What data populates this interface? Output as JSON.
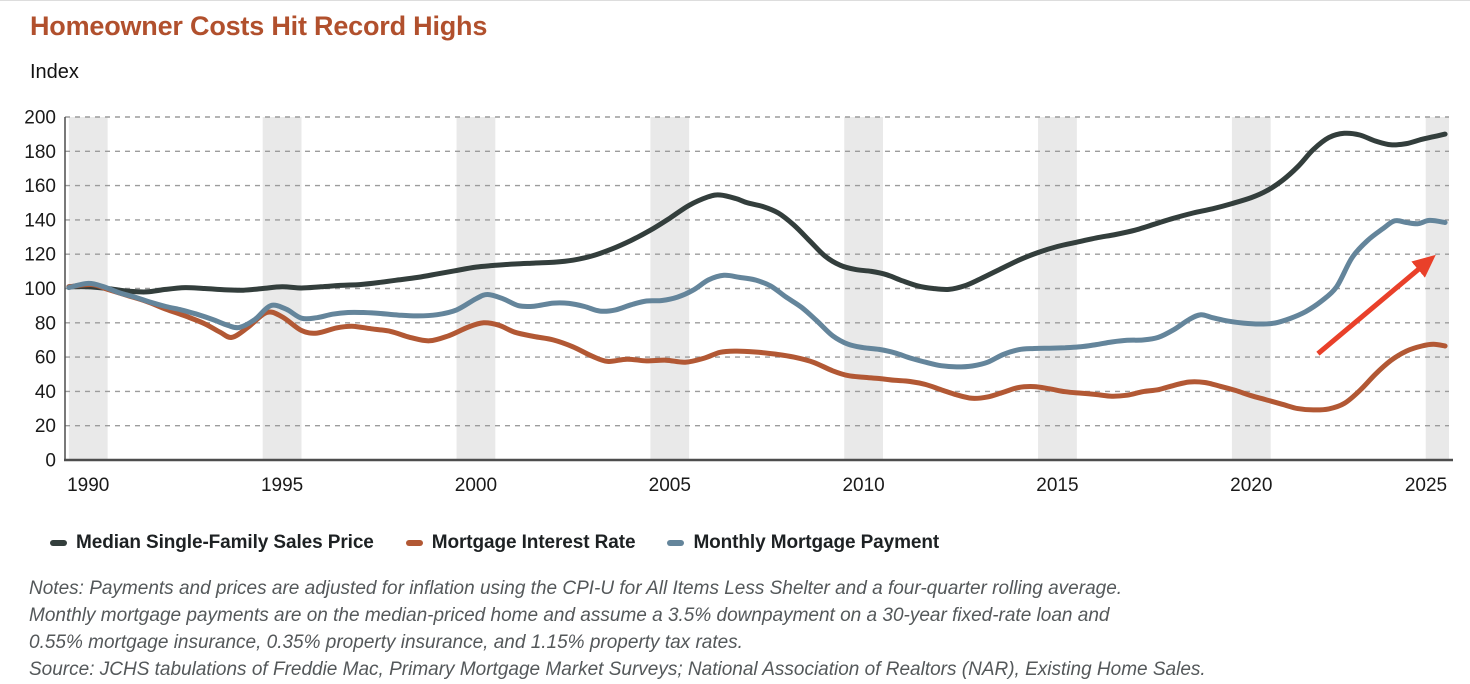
{
  "header": {
    "title": "Homeowner Costs Hit Record Highs",
    "unit_label": "Index"
  },
  "colors": {
    "title": "#b1502d",
    "band": "#e9e9e9",
    "grid": "#9c9c9c",
    "axis": "#4d4d4d",
    "tick_text": "#1a1a1a",
    "legend_text": "#1d2123",
    "notes_text": "#54585a",
    "arrow": "#e9402a"
  },
  "chart_data": {
    "type": "line",
    "title": "Homeowner Costs Hit Record Highs",
    "xlabel": "",
    "ylabel": "Index",
    "ylim": [
      0,
      200
    ],
    "ytick_step": 20,
    "xlim": [
      1989.4,
      2025.1
    ],
    "xticks": [
      1990,
      1995,
      2000,
      2005,
      2010,
      2015,
      2020,
      2025
    ],
    "grid": "dashed horizontal gridlines; 1-year light-gray vertical band centered on each 5-year tick",
    "legend_position": "bottom-left",
    "baseline_note": "All three series indexed to 100 in 1990; values are four-quarter rolling averages",
    "series": [
      {
        "name": "Median Single-Family Sales Price",
        "color": "#333e3c",
        "points": [
          [
            1989.5,
            101
          ],
          [
            1990,
            101
          ],
          [
            1990.5,
            100
          ],
          [
            1991,
            98.5
          ],
          [
            1991.5,
            98
          ],
          [
            1992,
            99.5
          ],
          [
            1992.5,
            100.5
          ],
          [
            1993,
            100
          ],
          [
            1993.5,
            99.3
          ],
          [
            1994,
            99
          ],
          [
            1994.5,
            100
          ],
          [
            1995,
            101
          ],
          [
            1995.5,
            100.3
          ],
          [
            1996,
            101
          ],
          [
            1996.5,
            101.8
          ],
          [
            1997,
            102.3
          ],
          [
            1997.5,
            103.5
          ],
          [
            1998,
            105
          ],
          [
            1998.5,
            106.5
          ],
          [
            1999,
            108.5
          ],
          [
            1999.5,
            110.5
          ],
          [
            2000,
            112.5
          ],
          [
            2000.5,
            113.5
          ],
          [
            2001,
            114.3
          ],
          [
            2001.5,
            114.8
          ],
          [
            2002,
            115.3
          ],
          [
            2002.5,
            116.5
          ],
          [
            2003,
            119
          ],
          [
            2003.5,
            123
          ],
          [
            2004,
            128
          ],
          [
            2004.5,
            134
          ],
          [
            2005,
            141
          ],
          [
            2005.5,
            148.5
          ],
          [
            2006,
            153.5
          ],
          [
            2006.3,
            154.5
          ],
          [
            2006.7,
            152.5
          ],
          [
            2007,
            150
          ],
          [
            2007.4,
            147.8
          ],
          [
            2007.8,
            144
          ],
          [
            2008.2,
            137
          ],
          [
            2008.6,
            128
          ],
          [
            2009,
            119
          ],
          [
            2009.4,
            113.5
          ],
          [
            2009.8,
            111
          ],
          [
            2010.2,
            110
          ],
          [
            2010.6,
            108
          ],
          [
            2011,
            104.5
          ],
          [
            2011.4,
            101.5
          ],
          [
            2011.8,
            100
          ],
          [
            2012.2,
            99.5
          ],
          [
            2012.6,
            101.5
          ],
          [
            2013,
            105.5
          ],
          [
            2013.5,
            111
          ],
          [
            2014,
            116.5
          ],
          [
            2014.5,
            121
          ],
          [
            2015,
            124.5
          ],
          [
            2015.5,
            127
          ],
          [
            2016,
            129.5
          ],
          [
            2016.5,
            131.5
          ],
          [
            2017,
            134
          ],
          [
            2017.5,
            137.5
          ],
          [
            2018,
            141
          ],
          [
            2018.5,
            144
          ],
          [
            2019,
            146.5
          ],
          [
            2019.5,
            149.5
          ],
          [
            2020,
            153
          ],
          [
            2020.4,
            157
          ],
          [
            2020.8,
            163
          ],
          [
            2021.2,
            171
          ],
          [
            2021.6,
            181
          ],
          [
            2022,
            188
          ],
          [
            2022.4,
            190.5
          ],
          [
            2022.8,
            189.5
          ],
          [
            2023.2,
            186
          ],
          [
            2023.6,
            183.8
          ],
          [
            2024,
            184.5
          ],
          [
            2024.4,
            187
          ],
          [
            2024.7,
            188.5
          ],
          [
            2025,
            190
          ]
        ]
      },
      {
        "name": "Mortgage Interest Rate",
        "color": "#b25834",
        "points": [
          [
            1989.5,
            101
          ],
          [
            1990.1,
            102.3
          ],
          [
            1990.5,
            99.5
          ],
          [
            1991,
            96
          ],
          [
            1991.5,
            92.5
          ],
          [
            1992,
            88
          ],
          [
            1992.5,
            84
          ],
          [
            1993,
            79.5
          ],
          [
            1993.4,
            74.5
          ],
          [
            1993.7,
            71.5
          ],
          [
            1994.1,
            77
          ],
          [
            1994.6,
            86
          ],
          [
            1995,
            83.5
          ],
          [
            1995.5,
            75.5
          ],
          [
            1995.9,
            74
          ],
          [
            1996.4,
            77
          ],
          [
            1996.8,
            78
          ],
          [
            1997.3,
            76.5
          ],
          [
            1997.8,
            75
          ],
          [
            1998.3,
            71.5
          ],
          [
            1998.8,
            69.5
          ],
          [
            1999.3,
            72.5
          ],
          [
            1999.8,
            77.5
          ],
          [
            2000.2,
            80
          ],
          [
            2000.6,
            78.5
          ],
          [
            2001,
            74.5
          ],
          [
            2001.5,
            72
          ],
          [
            2002,
            70
          ],
          [
            2002.5,
            66
          ],
          [
            2003,
            60.5
          ],
          [
            2003.4,
            57.5
          ],
          [
            2003.9,
            58.8
          ],
          [
            2004.4,
            57.8
          ],
          [
            2004.9,
            58.2
          ],
          [
            2005.4,
            57
          ],
          [
            2005.9,
            59.5
          ],
          [
            2006.3,
            62.8
          ],
          [
            2006.7,
            63.5
          ],
          [
            2007.2,
            63
          ],
          [
            2007.7,
            61.8
          ],
          [
            2008.2,
            60
          ],
          [
            2008.7,
            57
          ],
          [
            2009.2,
            52
          ],
          [
            2009.6,
            49.2
          ],
          [
            2010,
            48.3
          ],
          [
            2010.4,
            47.5
          ],
          [
            2010.8,
            46.5
          ],
          [
            2011.2,
            45.8
          ],
          [
            2011.6,
            44
          ],
          [
            2012,
            41
          ],
          [
            2012.4,
            38
          ],
          [
            2012.8,
            36
          ],
          [
            2013.2,
            36.8
          ],
          [
            2013.6,
            39.5
          ],
          [
            2014,
            42.3
          ],
          [
            2014.4,
            42.8
          ],
          [
            2014.8,
            41.5
          ],
          [
            2015.2,
            39.8
          ],
          [
            2015.6,
            39
          ],
          [
            2016,
            38.2
          ],
          [
            2016.4,
            37.2
          ],
          [
            2016.8,
            37.8
          ],
          [
            2017.2,
            39.8
          ],
          [
            2017.6,
            41
          ],
          [
            2018,
            43.5
          ],
          [
            2018.4,
            45.5
          ],
          [
            2018.8,
            45.2
          ],
          [
            2019.2,
            43
          ],
          [
            2019.6,
            40.5
          ],
          [
            2020,
            37.5
          ],
          [
            2020.4,
            35
          ],
          [
            2020.8,
            32.5
          ],
          [
            2021.2,
            30
          ],
          [
            2021.6,
            29.2
          ],
          [
            2022,
            29.8
          ],
          [
            2022.4,
            33
          ],
          [
            2022.8,
            40.5
          ],
          [
            2023.2,
            50
          ],
          [
            2023.6,
            58
          ],
          [
            2024,
            63.5
          ],
          [
            2024.4,
            66.5
          ],
          [
            2024.7,
            67.5
          ],
          [
            2025,
            66.5
          ]
        ]
      },
      {
        "name": "Monthly Mortgage Payment",
        "color": "#64859b",
        "points": [
          [
            1989.5,
            100.5
          ],
          [
            1990,
            103
          ],
          [
            1990.4,
            101
          ],
          [
            1990.8,
            97.5
          ],
          [
            1991.2,
            95
          ],
          [
            1991.6,
            92
          ],
          [
            1992,
            89.5
          ],
          [
            1992.4,
            87.5
          ],
          [
            1992.8,
            85
          ],
          [
            1993.2,
            82
          ],
          [
            1993.6,
            78.5
          ],
          [
            1993.9,
            77.3
          ],
          [
            1994.3,
            82
          ],
          [
            1994.7,
            90
          ],
          [
            1995.1,
            88
          ],
          [
            1995.5,
            82.7
          ],
          [
            1995.9,
            83
          ],
          [
            1996.3,
            85
          ],
          [
            1996.7,
            86
          ],
          [
            1997.1,
            86
          ],
          [
            1997.5,
            85.5
          ],
          [
            1998,
            84.5
          ],
          [
            1998.5,
            84
          ],
          [
            1999,
            84.7
          ],
          [
            1999.5,
            87.5
          ],
          [
            2000,
            94
          ],
          [
            2000.3,
            96.5
          ],
          [
            2000.7,
            94
          ],
          [
            2001.1,
            90
          ],
          [
            2001.5,
            89.7
          ],
          [
            2002,
            91.5
          ],
          [
            2002.4,
            91.3
          ],
          [
            2002.8,
            89.5
          ],
          [
            2003.2,
            86.8
          ],
          [
            2003.6,
            87.5
          ],
          [
            2004,
            90.5
          ],
          [
            2004.4,
            92.7
          ],
          [
            2004.8,
            93
          ],
          [
            2005.2,
            95
          ],
          [
            2005.6,
            99
          ],
          [
            2006,
            105
          ],
          [
            2006.4,
            107.7
          ],
          [
            2006.8,
            106.5
          ],
          [
            2007.2,
            105
          ],
          [
            2007.6,
            101.5
          ],
          [
            2008,
            95
          ],
          [
            2008.4,
            89
          ],
          [
            2008.8,
            81
          ],
          [
            2009.2,
            72.5
          ],
          [
            2009.6,
            67.5
          ],
          [
            2010,
            65.5
          ],
          [
            2010.4,
            64.5
          ],
          [
            2010.8,
            62.5
          ],
          [
            2011.2,
            59.5
          ],
          [
            2011.6,
            57
          ],
          [
            2012,
            55
          ],
          [
            2012.4,
            54.3
          ],
          [
            2012.8,
            54.8
          ],
          [
            2013.2,
            57
          ],
          [
            2013.6,
            61.5
          ],
          [
            2014,
            64.3
          ],
          [
            2014.4,
            65
          ],
          [
            2014.8,
            65.2
          ],
          [
            2015.2,
            65.5
          ],
          [
            2015.6,
            66
          ],
          [
            2016,
            67.3
          ],
          [
            2016.4,
            68.8
          ],
          [
            2016.8,
            69.8
          ],
          [
            2017.2,
            70
          ],
          [
            2017.6,
            71.5
          ],
          [
            2018,
            76
          ],
          [
            2018.4,
            82
          ],
          [
            2018.7,
            84.7
          ],
          [
            2019,
            83
          ],
          [
            2019.4,
            81
          ],
          [
            2019.8,
            79.8
          ],
          [
            2020.2,
            79.3
          ],
          [
            2020.6,
            79.8
          ],
          [
            2021,
            82.5
          ],
          [
            2021.4,
            86.5
          ],
          [
            2021.8,
            92.5
          ],
          [
            2022.2,
            101
          ],
          [
            2022.6,
            118
          ],
          [
            2023,
            128
          ],
          [
            2023.4,
            135
          ],
          [
            2023.7,
            139.5
          ],
          [
            2024,
            138.5
          ],
          [
            2024.3,
            137.8
          ],
          [
            2024.6,
            139.7
          ],
          [
            2025,
            138.5
          ]
        ]
      }
    ],
    "annotation_arrow": {
      "from": {
        "x": 2021.72,
        "y": 62
      },
      "to": {
        "x": 2024.62,
        "y": 117
      },
      "color": "#e9402a"
    }
  },
  "notes": {
    "lines": [
      "Notes: Payments and prices are adjusted for inflation using the CPI-U for All Items Less Shelter and a four-quarter rolling average.",
      "Monthly mortgage payments are on the median-priced home and assume a 3.5% downpayment on a 30-year fixed-rate loan and",
      "0.55% mortgage insurance, 0.35% property insurance, and 1.15% property tax rates.",
      "Source: JCHS tabulations of Freddie Mac, Primary Mortgage Market Surveys; National Association of Realtors (NAR), Existing Home Sales."
    ]
  }
}
